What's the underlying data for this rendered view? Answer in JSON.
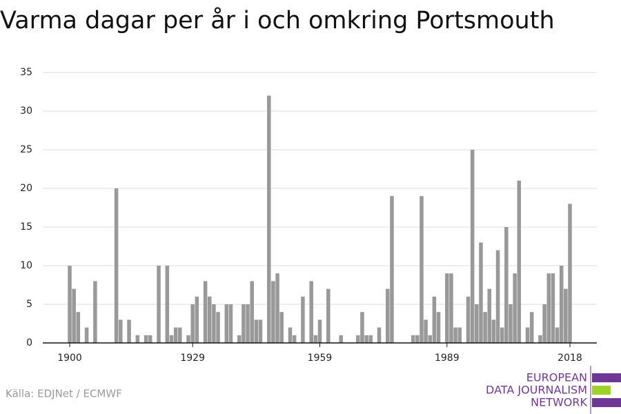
{
  "chart_data": {
    "type": "bar",
    "title": "Varma dagar per år i och omkring Portsmouth",
    "source": "Källa: EDJNet / ECMWF",
    "logo": [
      "EUROPEAN",
      "DATA JOURNALISM",
      "NETWORK"
    ],
    "color": "#999999",
    "x": [
      1900,
      1901,
      1902,
      1903,
      1904,
      1905,
      1906,
      1907,
      1908,
      1909,
      1910,
      1911,
      1912,
      1913,
      1914,
      1915,
      1916,
      1917,
      1918,
      1919,
      1920,
      1921,
      1922,
      1923,
      1924,
      1925,
      1926,
      1927,
      1928,
      1929,
      1930,
      1931,
      1932,
      1933,
      1934,
      1935,
      1936,
      1937,
      1938,
      1939,
      1940,
      1941,
      1942,
      1943,
      1944,
      1945,
      1946,
      1947,
      1948,
      1949,
      1950,
      1951,
      1952,
      1953,
      1954,
      1955,
      1956,
      1957,
      1958,
      1959,
      1960,
      1961,
      1962,
      1963,
      1964,
      1965,
      1966,
      1967,
      1968,
      1969,
      1970,
      1971,
      1972,
      1973,
      1974,
      1975,
      1976,
      1977,
      1978,
      1979,
      1980,
      1981,
      1982,
      1983,
      1984,
      1985,
      1986,
      1987,
      1988,
      1989,
      1990,
      1991,
      1992,
      1993,
      1994,
      1995,
      1996,
      1997,
      1998,
      1999,
      2000,
      2001,
      2002,
      2003,
      2004,
      2005,
      2006,
      2007,
      2008,
      2009,
      2010,
      2011,
      2012,
      2013,
      2014,
      2015,
      2016,
      2017,
      2018
    ],
    "values": [
      10,
      7,
      4,
      0,
      2,
      0,
      8,
      0,
      0,
      0,
      0,
      20,
      3,
      0,
      3,
      0,
      1,
      0,
      1,
      1,
      0,
      10,
      0,
      10,
      1,
      2,
      2,
      0,
      1,
      5,
      6,
      0,
      8,
      6,
      5,
      4,
      0,
      5,
      5,
      0,
      1,
      5,
      5,
      8,
      3,
      3,
      0,
      32,
      8,
      9,
      4,
      0,
      2,
      1,
      0,
      6,
      0,
      8,
      1,
      3,
      0,
      7,
      0,
      0,
      1,
      0,
      0,
      0,
      1,
      4,
      1,
      1,
      0,
      2,
      0,
      7,
      19,
      0,
      0,
      0,
      0,
      1,
      1,
      19,
      3,
      1,
      6,
      4,
      0,
      9,
      9,
      2,
      2,
      0,
      6,
      25,
      5,
      13,
      4,
      7,
      3,
      12,
      2,
      15,
      5,
      9,
      21,
      0,
      2,
      4,
      0,
      1,
      5,
      9,
      9,
      2,
      10,
      7,
      18
    ],
    "xlim": [
      1893.65,
      2024.35
    ],
    "xticks": [
      1900,
      1929,
      1959,
      1989,
      2018
    ],
    "ylim": [
      0,
      35
    ],
    "yticks": [
      0,
      5,
      10,
      15,
      20,
      25,
      30,
      35
    ],
    "grid": true
  }
}
